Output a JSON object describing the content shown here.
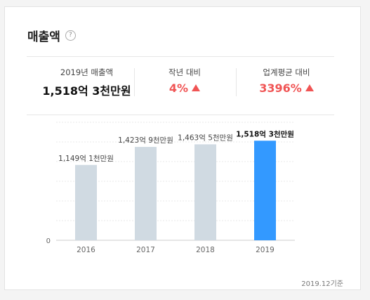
{
  "header": {
    "title": "매출액",
    "help_icon_glyph": "?"
  },
  "stats": [
    {
      "label": "2019년 매출액",
      "value": "1,518억 3천만원",
      "color": "#111111"
    },
    {
      "label": "작년 대비",
      "value": "4%",
      "color": "#f05454",
      "trend": "up-triangle-icon"
    },
    {
      "label": "업계평균 대비",
      "value": "3396%",
      "color": "#f05454",
      "trend": "up-triangle-icon"
    }
  ],
  "chart_data": {
    "type": "bar",
    "categories": [
      "2016",
      "2017",
      "2018",
      "2019"
    ],
    "values": [
      1149.1,
      1423.9,
      1463.5,
      1518.3
    ],
    "data_labels": [
      "1,149억 1천만원",
      "1,423억 9천만원",
      "1,463억 5천만원",
      "1,518억 3천만원"
    ],
    "highlight_index": 3,
    "y_tick_label": "0",
    "ylim": [
      0,
      1800
    ],
    "colors": {
      "bar": "#d0dae2",
      "highlight": "#3399ff"
    },
    "grid": "horizontal dotted"
  },
  "footnote": "2019.12기준"
}
